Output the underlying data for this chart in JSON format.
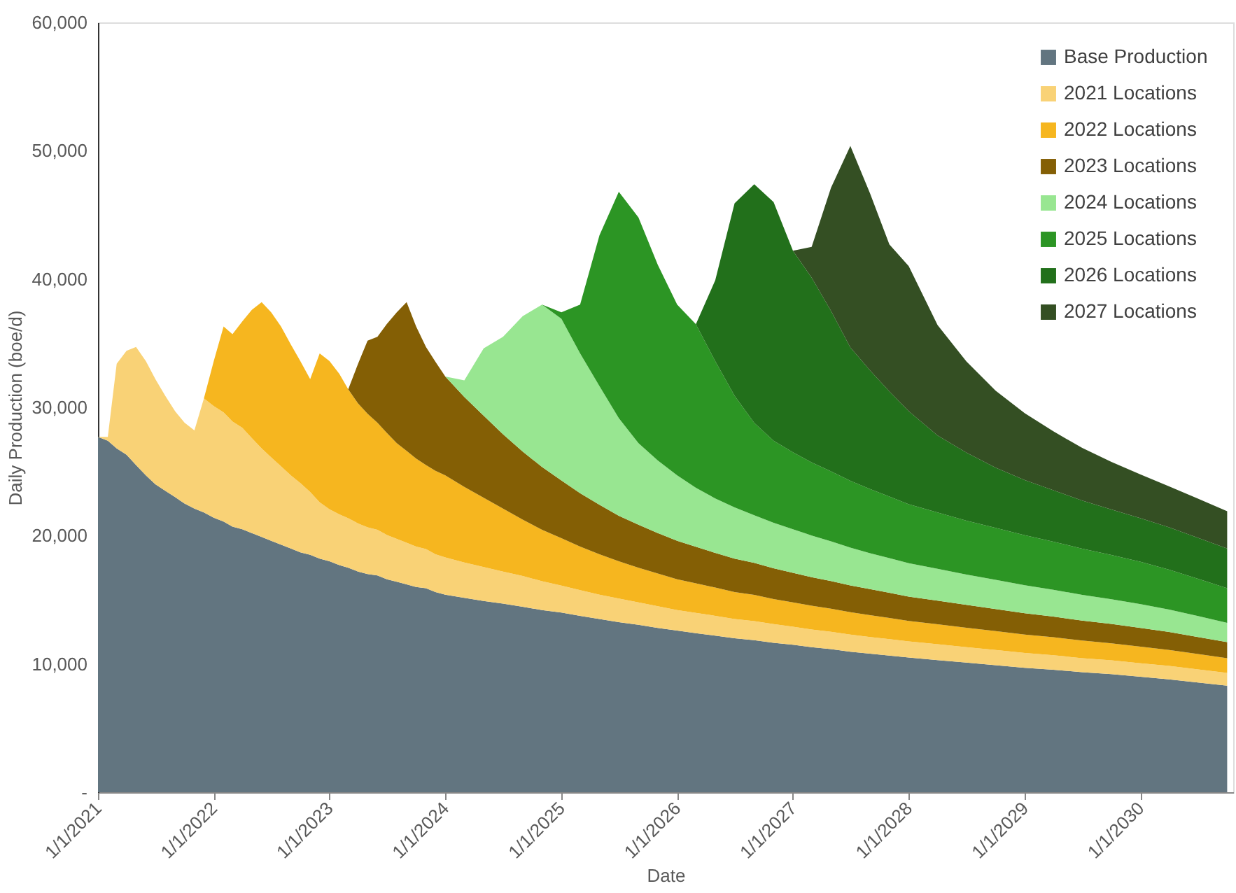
{
  "chart_data": {
    "type": "area",
    "stacked": true,
    "xlabel": "Date",
    "ylabel": "Daily Production (boe/d)",
    "legend": "top right",
    "grid": false,
    "x": [
      "2021-01",
      "2021-02",
      "2021-03",
      "2021-04",
      "2021-05",
      "2021-06",
      "2021-07",
      "2021-08",
      "2021-09",
      "2021-10",
      "2021-11",
      "2021-12",
      "2022-01",
      "2022-02",
      "2022-03",
      "2022-04",
      "2022-05",
      "2022-06",
      "2022-07",
      "2022-08",
      "2022-09",
      "2022-10",
      "2022-11",
      "2022-12",
      "2023-01",
      "2023-02",
      "2023-03",
      "2023-04",
      "2023-05",
      "2023-06",
      "2023-07",
      "2023-08",
      "2023-09",
      "2023-10",
      "2023-11",
      "2023-12",
      "2024-01",
      "2024-03",
      "2024-05",
      "2024-07",
      "2024-09",
      "2024-11",
      "2025-01",
      "2025-03",
      "2025-05",
      "2025-07",
      "2025-09",
      "2025-11",
      "2026-01",
      "2026-03",
      "2026-05",
      "2026-07",
      "2026-09",
      "2026-11",
      "2027-01",
      "2027-03",
      "2027-05",
      "2027-07",
      "2027-09",
      "2027-11",
      "2028-01",
      "2028-04",
      "2028-07",
      "2028-10",
      "2029-01",
      "2029-04",
      "2029-07",
      "2029-10",
      "2030-01",
      "2030-04",
      "2030-07",
      "2030-10"
    ],
    "series": [
      {
        "name": "Base Production",
        "color": "#627580",
        "values": [
          27700,
          27400,
          26800,
          26300,
          25500,
          24700,
          24000,
          23500,
          23000,
          22500,
          22100,
          21800,
          21400,
          21100,
          20700,
          20500,
          20200,
          19900,
          19600,
          19300,
          19000,
          18700,
          18500,
          18200,
          18000,
          17700,
          17500,
          17200,
          17000,
          16900,
          16600,
          16400,
          16200,
          16000,
          15900,
          15600,
          15400,
          15150,
          14900,
          14700,
          14450,
          14200,
          14000,
          13750,
          13500,
          13250,
          13050,
          12800,
          12600,
          12400,
          12200,
          12000,
          11850,
          11650,
          11500,
          11300,
          11150,
          10950,
          10800,
          10650,
          10500,
          10300,
          10100,
          9900,
          9700,
          9550,
          9350,
          9200,
          9000,
          8800,
          8550,
          8300
        ]
      },
      {
        "name": "2021 Locations",
        "color": "#f9d276",
        "values": [
          0,
          300,
          6600,
          8100,
          9200,
          8900,
          8200,
          7400,
          6700,
          6300,
          6100,
          8900,
          8700,
          8500,
          8200,
          7900,
          7400,
          6900,
          6500,
          6100,
          5700,
          5400,
          4900,
          4400,
          4050,
          3950,
          3850,
          3750,
          3650,
          3550,
          3450,
          3350,
          3250,
          3150,
          3050,
          2950,
          2900,
          2750,
          2650,
          2500,
          2400,
          2250,
          2100,
          2000,
          1900,
          1850,
          1750,
          1700,
          1600,
          1580,
          1550,
          1500,
          1480,
          1450,
          1400,
          1380,
          1350,
          1330,
          1300,
          1280,
          1250,
          1230,
          1200,
          1180,
          1150,
          1130,
          1100,
          1080,
          1050,
          1040,
          1020,
          1000
        ]
      },
      {
        "name": "2022 Locations",
        "color": "#f6b61f",
        "values": [
          0,
          0,
          0,
          0,
          0,
          0,
          0,
          0,
          0,
          0,
          0,
          0,
          3500,
          6700,
          6800,
          8300,
          10000,
          11400,
          11300,
          10900,
          10200,
          9500,
          8800,
          11600,
          11550,
          10950,
          10050,
          9350,
          8850,
          8350,
          7950,
          7450,
          7150,
          6850,
          6550,
          6500,
          6400,
          5900,
          5400,
          4900,
          4400,
          4000,
          3700,
          3400,
          3150,
          2900,
          2700,
          2550,
          2400,
          2300,
          2200,
          2100,
          2050,
          1950,
          1900,
          1850,
          1800,
          1750,
          1700,
          1650,
          1600,
          1560,
          1520,
          1480,
          1440,
          1400,
          1370,
          1330,
          1300,
          1250,
          1200,
          1150
        ]
      },
      {
        "name": "2023 Locations",
        "color": "#845f05",
        "values": [
          0,
          0,
          0,
          0,
          0,
          0,
          0,
          0,
          0,
          0,
          0,
          0,
          0,
          0,
          0,
          0,
          0,
          0,
          0,
          0,
          0,
          0,
          0,
          0,
          0,
          0,
          0,
          3100,
          5700,
          6700,
          8500,
          10200,
          11600,
          10300,
          9200,
          8500,
          7700,
          7000,
          6400,
          5800,
          5300,
          4900,
          4500,
          4150,
          3850,
          3550,
          3350,
          3150,
          3000,
          2850,
          2700,
          2600,
          2500,
          2400,
          2300,
          2230,
          2160,
          2090,
          2030,
          1960,
          1900,
          1840,
          1780,
          1720,
          1660,
          1610,
          1560,
          1510,
          1460,
          1400,
          1330,
          1250
        ]
      },
      {
        "name": "2024 Locations",
        "color": "#98e691",
        "values": [
          0,
          0,
          0,
          0,
          0,
          0,
          0,
          0,
          0,
          0,
          0,
          0,
          0,
          0,
          0,
          0,
          0,
          0,
          0,
          0,
          0,
          0,
          0,
          0,
          0,
          0,
          0,
          0,
          0,
          0,
          0,
          0,
          0,
          0,
          0,
          0,
          0,
          1300,
          5250,
          7600,
          10550,
          12650,
          12600,
          10900,
          9250,
          7600,
          6350,
          5650,
          5100,
          4600,
          4250,
          4000,
          3700,
          3550,
          3400,
          3250,
          3100,
          2950,
          2800,
          2700,
          2600,
          2480,
          2370,
          2270,
          2180,
          2090,
          2000,
          1920,
          1850,
          1750,
          1630,
          1500
        ]
      },
      {
        "name": "2025 Locations",
        "color": "#2c9524",
        "values": [
          0,
          0,
          0,
          0,
          0,
          0,
          0,
          0,
          0,
          0,
          0,
          0,
          0,
          0,
          0,
          0,
          0,
          0,
          0,
          0,
          0,
          0,
          0,
          0,
          0,
          0,
          0,
          0,
          0,
          0,
          0,
          0,
          0,
          0,
          0,
          0,
          0,
          0,
          0,
          0,
          0,
          0,
          500,
          3800,
          11750,
          17650,
          17600,
          15250,
          13300,
          12750,
          10700,
          8700,
          7200,
          6400,
          6000,
          5700,
          5450,
          5200,
          5000,
          4800,
          4600,
          4400,
          4200,
          4050,
          3900,
          3750,
          3600,
          3450,
          3300,
          3100,
          2900,
          2700
        ]
      },
      {
        "name": "2026 Locations",
        "color": "#22701b",
        "values": [
          0,
          0,
          0,
          0,
          0,
          0,
          0,
          0,
          0,
          0,
          0,
          0,
          0,
          0,
          0,
          0,
          0,
          0,
          0,
          0,
          0,
          0,
          0,
          0,
          0,
          0,
          0,
          0,
          0,
          0,
          0,
          0,
          0,
          0,
          0,
          0,
          0,
          0,
          0,
          0,
          0,
          0,
          0,
          0,
          0,
          0,
          0,
          0,
          0,
          0,
          6300,
          15000,
          18600,
          18600,
          15700,
          14400,
          12500,
          10400,
          9250,
          8200,
          7250,
          6000,
          5300,
          4700,
          4300,
          4000,
          3750,
          3550,
          3400,
          3300,
          3200,
          3100
        ]
      },
      {
        "name": "2027 Locations",
        "color": "#344f23",
        "values": [
          0,
          0,
          0,
          0,
          0,
          0,
          0,
          0,
          0,
          0,
          0,
          0,
          0,
          0,
          0,
          0,
          0,
          0,
          0,
          0,
          0,
          0,
          0,
          0,
          0,
          0,
          0,
          0,
          0,
          0,
          0,
          0,
          0,
          0,
          0,
          0,
          0,
          0,
          0,
          0,
          0,
          0,
          0,
          0,
          0,
          0,
          0,
          0,
          0,
          0,
          0,
          0,
          0,
          0,
          0,
          2400,
          9600,
          15700,
          13800,
          11450,
          11300,
          8600,
          7100,
          6000,
          5200,
          4600,
          4100,
          3700,
          3400,
          3200,
          3050,
          2900
        ]
      }
    ],
    "ylim": [
      0,
      60000
    ],
    "yticks": [
      {
        "value": 0,
        "label": "-"
      },
      {
        "value": 10000,
        "label": "10,000"
      },
      {
        "value": 20000,
        "label": "20,000"
      },
      {
        "value": 30000,
        "label": "30,000"
      },
      {
        "value": 40000,
        "label": "40,000"
      },
      {
        "value": 50000,
        "label": "50,000"
      },
      {
        "value": 60000,
        "label": "60,000"
      }
    ],
    "xlim": [
      "2021-01-01",
      "2030-10-20"
    ],
    "xticks": [
      {
        "value": "2021-01-01",
        "label": "1/1/2021"
      },
      {
        "value": "2022-01-01",
        "label": "1/1/2022"
      },
      {
        "value": "2023-01-01",
        "label": "1/1/2023"
      },
      {
        "value": "2024-01-01",
        "label": "1/1/2024"
      },
      {
        "value": "2025-01-01",
        "label": "1/1/2025"
      },
      {
        "value": "2026-01-01",
        "label": "1/1/2026"
      },
      {
        "value": "2027-01-01",
        "label": "1/1/2027"
      },
      {
        "value": "2028-01-01",
        "label": "1/1/2028"
      },
      {
        "value": "2029-01-01",
        "label": "1/1/2029"
      },
      {
        "value": "2030-01-01",
        "label": "1/1/2030"
      }
    ]
  }
}
